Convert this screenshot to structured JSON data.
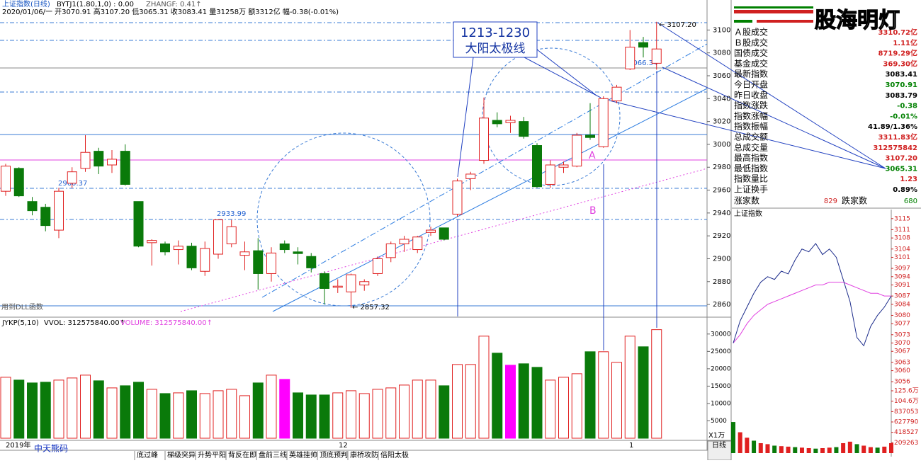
{
  "header": {
    "symbol": "上证指数(日线)",
    "indicator": "BYTJ1(1.80,1,0) : 0.00",
    "zhangf": "ZHANGF: 0.41↑",
    "quote": "2020/01/06/一 开3070.91 高3107.20 低3065.31 收3083.41 量31258万 额3312亿 幅-0.38(-0.01%)"
  },
  "main_chart": {
    "ylim": [
      2852,
      3112
    ],
    "yticks": [
      2860,
      2880,
      2900,
      2920,
      2940,
      2960,
      2980,
      3000,
      3020,
      3040,
      3060,
      3080,
      3100
    ],
    "open": [
      2959,
      2979,
      2950,
      2945,
      2925,
      2966,
      2979,
      2994,
      2982,
      2994,
      2950,
      2914,
      2913,
      2908,
      2911,
      2889,
      2904,
      2913,
      2903,
      2907,
      2887,
      2913,
      2906,
      2902,
      2887,
      2875,
      2871,
      2877,
      2887,
      2901,
      2913,
      2908,
      2923,
      2927,
      2939,
      2970,
      2986,
      3021,
      3019,
      3020,
      2999,
      2965,
      2980,
      2981,
      3008,
      2998,
      3038,
      3066,
      3089,
      3070.91
    ],
    "high": [
      2983,
      2980,
      2954,
      2948,
      2962,
      2980,
      3008,
      2997,
      2995,
      3000,
      2950,
      2917,
      2915,
      2916,
      2914,
      2915,
      2934,
      2934,
      2915,
      2918,
      2910,
      2916,
      2910,
      2905,
      2889,
      2882,
      2887,
      2882,
      2902,
      2915,
      2920,
      2920,
      2928,
      2927,
      2970,
      2976,
      3041,
      3028,
      3025,
      3024,
      3001,
      2986,
      2985,
      3010,
      3036,
      3042,
      3052,
      3100,
      3094,
      3107.2
    ],
    "low": [
      2955,
      2954,
      2938,
      2924,
      2918,
      2962,
      2976,
      2974,
      2975,
      2964,
      2910,
      2894,
      2903,
      2895,
      2890,
      2885,
      2900,
      2910,
      2890,
      2873,
      2880,
      2905,
      2895,
      2888,
      2860,
      2870,
      2857,
      2872,
      2885,
      2897,
      2906,
      2905,
      2920,
      2916,
      2937,
      2960,
      2983,
      3015,
      3010,
      3005,
      2962,
      2962,
      2975,
      2980,
      3004,
      2997,
      3036,
      3065,
      3076,
      3065.31
    ],
    "close": [
      2981,
      2955,
      2942,
      2929,
      2959,
      2976,
      2993,
      2981,
      2987,
      2965,
      2911,
      2916,
      2906,
      2911,
      2892,
      2909,
      2934,
      2928,
      2906,
      2887,
      2905,
      2908,
      2904.5,
      2892,
      2874,
      2876,
      2886,
      2880,
      2900,
      2913,
      2917,
      2919,
      2925,
      2917,
      2968,
      2974,
      3023,
      3018,
      3021,
      3007,
      2963,
      2982,
      2982,
      3008,
      3006,
      3040,
      3050,
      3085,
      3085,
      3083.41
    ],
    "annotations": {
      "box_line1": "1213-1230",
      "box_line2": "大阳太极线",
      "low_2960": "2960.37",
      "high_2933": "2933.99",
      "low_2857": "← 2857.32",
      "low_3066": "3066.34",
      "high_3107": "← 3107.20",
      "a": "A",
      "b": "B",
      "dll": "用到DLL函数"
    }
  },
  "volume_chart": {
    "title": "JYKP(5,10)",
    "vvol": "VVOL: 312575840.00↑",
    "volume": "VOLUME: 312575840.00↑",
    "unit": "X1万",
    "ylim": [
      0,
      32000
    ],
    "yticks": [
      5000,
      10000,
      15000,
      20000,
      25000,
      30000
    ],
    "values": [
      17551,
      16735,
      15918,
      16122,
      16735,
      17347,
      18163,
      16531,
      14490,
      15102,
      16122,
      14082,
      12857,
      13061,
      13673,
      12857,
      13673,
      14082,
      12245,
      15918,
      18163,
      16939,
      13061,
      12449,
      12449,
      13061,
      13673,
      12857,
      14082,
      14490,
      15306,
      16735,
      16735,
      15102,
      21224,
      21224,
      29388,
      24490,
      21020,
      21429,
      20408,
      16735,
      17551,
      18571,
      24898,
      24898,
      21837,
      29388,
      26327,
      31258
    ],
    "highlight_color": "#ff00ff",
    "highlight": [
      false,
      false,
      false,
      false,
      false,
      false,
      false,
      false,
      false,
      false,
      false,
      false,
      false,
      false,
      false,
      false,
      false,
      false,
      false,
      false,
      false,
      true,
      false,
      false,
      false,
      false,
      false,
      false,
      false,
      false,
      false,
      false,
      false,
      false,
      false,
      false,
      false,
      false,
      true,
      false,
      false,
      false,
      false,
      false,
      false,
      false,
      false,
      false,
      false,
      false
    ]
  },
  "timeline": {
    "year": "2019年",
    "dec": "12",
    "jan": "1",
    "period": "日线"
  },
  "tabs": [
    "底过峰",
    "梯级突异",
    "升势平阳",
    "背反在即",
    "盘前三线",
    "英雄挂帅",
    "顶底预判",
    "康桥攻防",
    "倍阳太极"
  ],
  "logo": "中天熊码",
  "watermark": "股海明灯",
  "panel": {
    "rows": [
      {
        "label": "Ａ股成交",
        "value": "3310.72亿",
        "color": "#d02020"
      },
      {
        "label": "Ｂ股成交",
        "value": "1.11亿",
        "color": "#d02020"
      },
      {
        "label": "国债成交",
        "value": "8719.29亿",
        "color": "#d02020"
      },
      {
        "label": "基金成交",
        "value": "369.30亿",
        "color": "#d02020"
      },
      {
        "label": "最新指数",
        "value": "3083.41",
        "color": "#000000"
      },
      {
        "label": "今日开盘",
        "value": "3070.91",
        "color": "#008000"
      },
      {
        "label": "昨日收盘",
        "value": "3083.79",
        "color": "#000000"
      },
      {
        "label": "指数涨跌",
        "value": "-0.38",
        "color": "#008000"
      },
      {
        "label": "指数涨幅",
        "value": "-0.01%",
        "color": "#008000"
      },
      {
        "label": "指数振幅",
        "value": "41.89/1.36%",
        "color": "#000000"
      },
      {
        "label": "总成交额",
        "value": "3311.83亿",
        "color": "#d02020"
      },
      {
        "label": "总成交量",
        "value": "312575842",
        "color": "#d02020"
      },
      {
        "label": "最高指数",
        "value": "3107.20",
        "color": "#d02020"
      },
      {
        "label": "最低指数",
        "value": "3065.31",
        "color": "#008000"
      },
      {
        "label": "指数量比",
        "value": "1.23",
        "color": "#d02020"
      },
      {
        "label": "上证换手",
        "value": "0.89%",
        "color": "#000000"
      }
    ],
    "up_label": "涨家数",
    "up_value": "829",
    "down_label": "跌家数",
    "down_value": "680"
  },
  "mini_chart": {
    "title": "上证指数",
    "ylim": [
      3054,
      3117
    ],
    "yticks": [
      3056,
      3060,
      3063,
      3067,
      3070,
      3073,
      3077,
      3080,
      3084,
      3087,
      3091,
      3094,
      3097,
      3101,
      3104,
      3108,
      3111,
      3115
    ],
    "price": [
      3070,
      3078,
      3083,
      3088,
      3092,
      3094,
      3093,
      3096,
      3095,
      3100,
      3104,
      3103,
      3106,
      3102,
      3104,
      3101,
      3093,
      3085,
      3072,
      3069,
      3076,
      3080,
      3083,
      3087
    ],
    "avg": [
      3070,
      3073,
      3077,
      3080,
      3082,
      3084,
      3085,
      3086,
      3087,
      3088,
      3089,
      3090,
      3091,
      3091,
      3092,
      3092,
      3092,
      3091,
      3090,
      3089,
      3088,
      3088,
      3087,
      3087
    ],
    "vol_ylim": [
      0,
      1256000
    ],
    "vol_ticks": [
      {
        "value": 1256000,
        "label": "125.6万"
      },
      {
        "value": 1046000,
        "label": "104.6万"
      },
      837053,
      627790,
      418527,
      209263
    ],
    "volume": [
      627000,
      420000,
      310000,
      250000,
      200000,
      180000,
      150000,
      140000,
      130000,
      120000,
      110000,
      100000,
      90000,
      100000,
      110000,
      120000,
      200000,
      230000,
      180000,
      150000,
      120000,
      110000,
      130000,
      200000
    ]
  }
}
